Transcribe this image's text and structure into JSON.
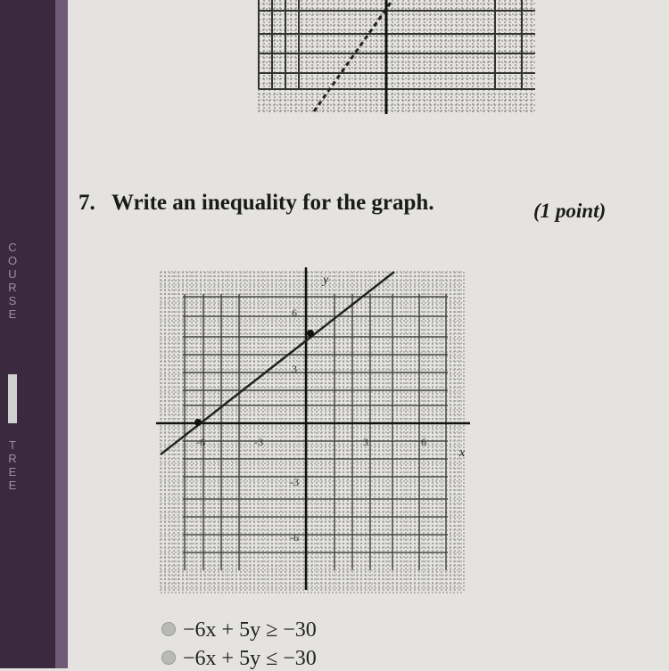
{
  "sidebar": {
    "top_label": "COURSE",
    "bottom_label": "TREE"
  },
  "question": {
    "number": "7.",
    "text": "Write an inequality for the graph.",
    "points": "(1 point)"
  },
  "graph": {
    "x_axis_label": "x",
    "y_axis_label": "y",
    "x_tick_labels": [
      "-6",
      "-3",
      "3",
      "6"
    ],
    "y_tick_labels": [
      "6",
      "3",
      "-3",
      "-6"
    ]
  },
  "options": [
    "−6x + 5y ≥ −30",
    "−6x + 5y ≤ −30"
  ]
}
